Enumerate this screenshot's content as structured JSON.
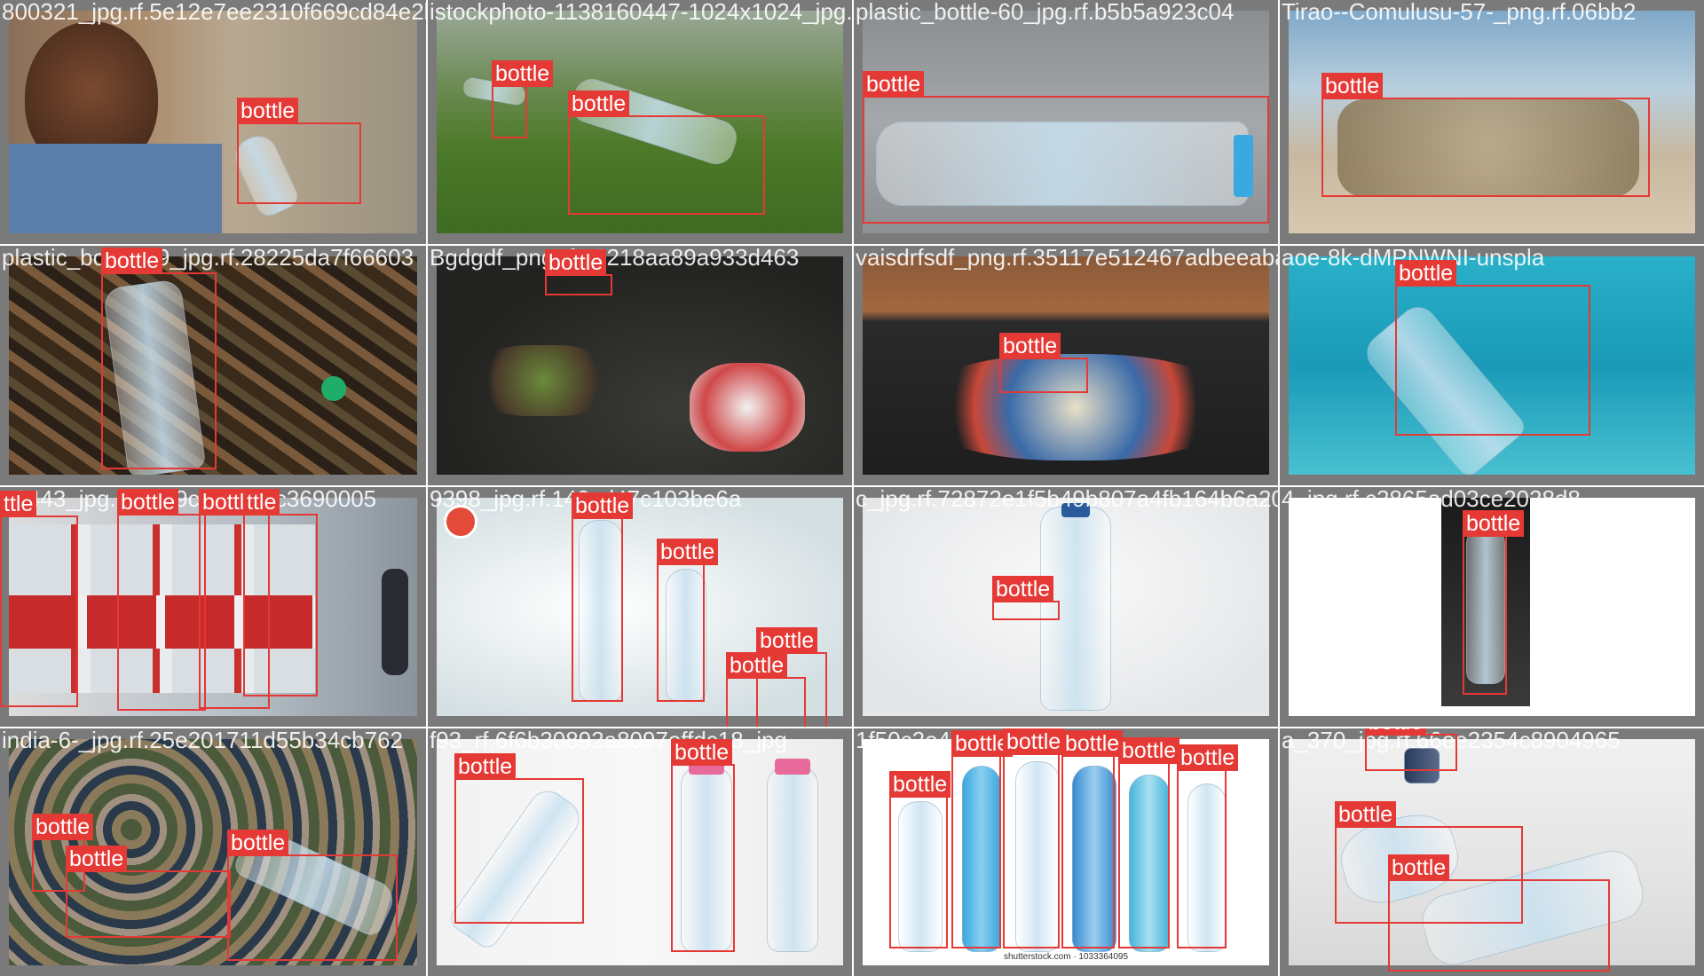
{
  "label_color": "#e53935",
  "tiles": [
    {
      "filename": "800321_jpg.rf.5e12e7ee2310f669cd84e2b8d",
      "scene": "portrait",
      "boxes": [
        {
          "label": "bottle"
        }
      ]
    },
    {
      "filename": "istockphoto-1138160447-1024x1024_jpg.rf",
      "scene": "grass",
      "boxes": [
        {
          "label": "bottle"
        },
        {
          "label": "bottle"
        }
      ]
    },
    {
      "filename": "plastic_bottle-60_jpg.rf.b5b5a923c04",
      "scene": "road",
      "boxes": [
        {
          "label": "bottle"
        }
      ]
    },
    {
      "filename": "Tirao--Comulusu-57-_png.rf.06bb2",
      "scene": "beach",
      "boxes": [
        {
          "label": "bottle"
        }
      ]
    },
    {
      "filename": "plastic_bott_559_jpg.rf.28225da7f66603",
      "scene": "litter",
      "boxes": [
        {
          "label": "bottle"
        }
      ]
    },
    {
      "filename": "Bgdgdf_png.rf.a9218aa89a933d463",
      "scene": "conveyor",
      "boxes": [
        {
          "label": "bottle"
        }
      ]
    },
    {
      "filename": "vaisdrfsdf_png.rf.35117e512467adbeeaba",
      "scene": "conveyor2",
      "boxes": [
        {
          "label": "bottle"
        }
      ]
    },
    {
      "filename": "aoe-8k-dMPNWNI-unspla",
      "scene": "underwater",
      "boxes": [
        {
          "label": "bottle"
        }
      ]
    },
    {
      "filename": "tt0443_jpg.rf.5ba9c3af26cfc3690005",
      "scene": "nongfu",
      "boxes": [
        {
          "label": "ttle"
        },
        {
          "label": "bottle"
        },
        {
          "label": "bottle"
        },
        {
          "label": "ttle"
        }
      ]
    },
    {
      "filename": "9398_jpg.rf.149cd47c103be6a",
      "scene": "purra",
      "boxes": [
        {
          "label": "bottle"
        },
        {
          "label": "bottle"
        },
        {
          "label": "bottle"
        },
        {
          "label": "bottle"
        }
      ]
    },
    {
      "filename": "c_jpg.rf.72872e1f5b49b807a4fb164b6a2005a",
      "scene": "single",
      "boxes": [
        {
          "label": "bottle"
        }
      ]
    },
    {
      "filename": "4_jpg.rf.c2865ad03ce2028d8",
      "scene": "venzor",
      "boxes": [
        {
          "label": "bottle"
        }
      ]
    },
    {
      "filename": "india-6-_jpg.rf.25e201711d55b34cb762",
      "scene": "pile",
      "boxes": [
        {
          "label": "bottle"
        },
        {
          "label": "bottle"
        },
        {
          "label": "bottle"
        }
      ]
    },
    {
      "filename": "f93_rf.6f6b30892a8097effdc18_jpg",
      "scene": "iris",
      "boxes": [
        {
          "label": "bottle"
        },
        {
          "label": "bottle"
        }
      ]
    },
    {
      "filename": "1f50c2e4a82a2c",
      "scene": "lineup",
      "caption": "shutterstock.com · 1033364095",
      "boxes": [
        {
          "label": "bottle"
        },
        {
          "label": "bottle"
        },
        {
          "label": "bottle"
        },
        {
          "label": "bottle"
        },
        {
          "label": "bottle"
        },
        {
          "label": "bottle"
        }
      ]
    },
    {
      "filename": "a_370_jpg.rf.66ee2354c8904965",
      "scene": "crushed",
      "boxes": [
        {
          "label": "bottle"
        },
        {
          "label": "bottle"
        },
        {
          "label": "bottle"
        }
      ]
    }
  ]
}
